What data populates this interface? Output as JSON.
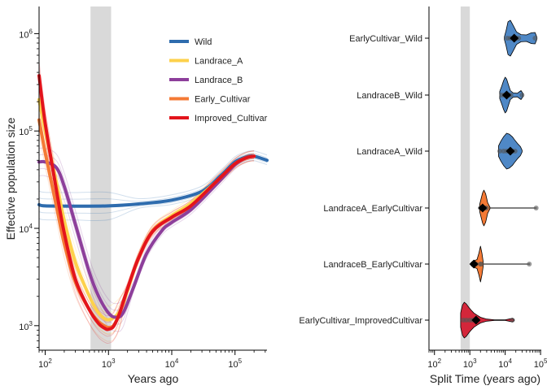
{
  "chart_data": [
    {
      "type": "line",
      "xlabel": "Years ago",
      "ylabel": "Effective population size",
      "x_scale": "log10",
      "y_scale": "log10",
      "xlim": [
        80,
        320000
      ],
      "ylim": [
        560,
        1900000
      ],
      "x_ticks": [
        100,
        1000,
        10000,
        100000
      ],
      "x_tick_labels": [
        [
          "10",
          "2"
        ],
        [
          "10",
          "3"
        ],
        [
          "10",
          "4"
        ],
        [
          "10",
          "5"
        ]
      ],
      "y_ticks": [
        1000,
        10000,
        100000,
        1000000
      ],
      "y_tick_labels": [
        [
          "10",
          "3"
        ],
        [
          "10",
          "4"
        ],
        [
          "10",
          "5"
        ],
        [
          "10",
          "6"
        ]
      ],
      "shaded_band_x": [
        520,
        1100
      ],
      "legend_position": "top-right",
      "series": [
        {
          "name": "Wild",
          "color": "#2e6cae",
          "x": [
            80,
            100,
            300,
            1000,
            3000,
            10000,
            30000,
            60000,
            100000,
            150000,
            200000,
            320000
          ],
          "y": [
            17500,
            17000,
            16900,
            17000,
            17800,
            19500,
            24000,
            35000,
            48000,
            54000,
            55000,
            50000
          ]
        },
        {
          "name": "Landrace_A",
          "color": "#fdd14b",
          "x": [
            80,
            100,
            150,
            200,
            300,
            500,
            700,
            1000,
            1500,
            2000,
            3000,
            5000,
            10000,
            20000,
            50000,
            100000,
            150000,
            200000
          ],
          "y": [
            210000,
            100000,
            30000,
            12000,
            4500,
            2000,
            1350,
            1150,
            1400,
            2300,
            5000,
            9500,
            13500,
            18000,
            30000,
            46000,
            53000,
            55000
          ]
        },
        {
          "name": "Landrace_B",
          "color": "#8d3f9b",
          "x": [
            80,
            100,
            150,
            200,
            300,
            500,
            700,
            1000,
            1300,
            1700,
            2500,
            4000,
            7000,
            10000,
            20000,
            50000,
            100000,
            150000,
            200000
          ],
          "y": [
            48000,
            48000,
            42000,
            27000,
            11000,
            3500,
            2000,
            1350,
            1220,
            1350,
            2500,
            5500,
            9500,
            11500,
            15500,
            28000,
            45000,
            53000,
            55000
          ]
        },
        {
          "name": "Early_Cultivar",
          "color": "#f47a35",
          "x": [
            80,
            100,
            150,
            200,
            300,
            500,
            700,
            900,
            1000,
            1200,
            1500,
            2000,
            3000,
            5000,
            10000,
            20000,
            50000,
            100000,
            150000,
            200000
          ],
          "y": [
            130000,
            60000,
            17000,
            7000,
            2800,
            1450,
            1100,
            980,
            960,
            1000,
            1350,
            2400,
            5000,
            9500,
            13000,
            17000,
            30000,
            46000,
            53000,
            55000
          ]
        },
        {
          "name": "Improved_Cultivar",
          "color": "#e3141c",
          "x": [
            80,
            100,
            150,
            200,
            300,
            500,
            700,
            900,
            1000,
            1200,
            1500,
            2000,
            3000,
            5000,
            10000,
            20000,
            50000,
            100000,
            150000,
            200000
          ],
          "y": [
            370000,
            120000,
            25000,
            9000,
            3000,
            1450,
            1050,
            930,
            920,
            980,
            1350,
            2400,
            5000,
            9300,
            13000,
            17000,
            30000,
            46000,
            53000,
            55000
          ]
        }
      ]
    },
    {
      "type": "violin",
      "xlabel": "Split Time (years ago)",
      "x_scale": "log10",
      "xlim": [
        70,
        105000
      ],
      "x_ticks": [
        100,
        1000,
        10000,
        100000
      ],
      "x_tick_labels": [
        [
          "10",
          "2"
        ],
        [
          "10",
          "3"
        ],
        [
          "10",
          "4"
        ],
        [
          "10",
          "5"
        ]
      ],
      "shaded_band_x": [
        550,
        1000
      ],
      "categories": [
        "EarlyCultivar_Wild",
        "LandraceB_Wild",
        "LandraceA_Wild",
        "LandraceA_EarlyCultivar",
        "LandraceB_EarlyCultivar",
        "EarlyCultivar_ImprovedCultivar"
      ],
      "groups": [
        {
          "category": "EarlyCultivar_Wild",
          "color": "#4f88c6",
          "mean": 18000,
          "points": [
            11500,
            14000,
            17000,
            20000,
            24000,
            70000
          ],
          "range": [
            9500,
            78000
          ],
          "profile_x": [
            9500,
            10500,
            12000,
            14000,
            17000,
            21000,
            28000,
            40000,
            55000,
            70000,
            78000
          ],
          "profile_w": [
            0.08,
            0.4,
            0.92,
            1.0,
            0.7,
            0.35,
            0.2,
            0.18,
            0.3,
            0.32,
            0.08
          ]
        },
        {
          "category": "LandraceB_Wild",
          "color": "#4f88c6",
          "mean": 11000,
          "points": [
            8000,
            9500,
            11000,
            12500,
            14500,
            30000
          ],
          "range": [
            7000,
            32000
          ],
          "profile_x": [
            7000,
            8000,
            9000,
            10000,
            11000,
            12500,
            14000,
            17000,
            22000,
            28000,
            32000
          ],
          "profile_w": [
            0.2,
            0.5,
            0.8,
            1.0,
            0.9,
            0.55,
            0.25,
            0.12,
            0.1,
            0.25,
            0.08
          ]
        },
        {
          "category": "LandraceA_Wild",
          "color": "#4f88c6",
          "mean": 14000,
          "points": [
            7000,
            9000,
            11000,
            13000,
            16000,
            19000
          ],
          "range": [
            6500,
            30000
          ],
          "profile_x": [
            6500,
            7500,
            9000,
            11000,
            13000,
            16000,
            19000,
            23000,
            27000,
            30000
          ],
          "profile_w": [
            0.3,
            0.55,
            0.8,
            1.0,
            0.95,
            0.8,
            0.6,
            0.4,
            0.25,
            0.05
          ]
        },
        {
          "category": "LandraceA_EarlyCultivar",
          "color": "#f47a35",
          "mean": 2300,
          "points": [
            2000,
            2300,
            2700,
            3000,
            75000
          ],
          "range": [
            1900,
            78000
          ],
          "profile_x": [
            1900,
            2100,
            2300,
            2500,
            2800,
            3200,
            3700
          ],
          "profile_w": [
            0.2,
            0.55,
            0.85,
            1.0,
            0.8,
            0.3,
            0.05
          ]
        },
        {
          "category": "LandraceB_EarlyCultivar",
          "color": "#f47a35",
          "mean": 1300,
          "points": [
            1200,
            1500,
            2000,
            2100,
            48000
          ],
          "range": [
            1100,
            50000
          ],
          "profile_x": [
            1100,
            1300,
            1600,
            1800,
            2000,
            2200,
            2400
          ],
          "profile_w": [
            0.1,
            0.18,
            0.25,
            0.6,
            1.0,
            0.6,
            0.1
          ]
        },
        {
          "category": "EarlyCultivar_ImprovedCultivar",
          "color": "#d3263a",
          "mean": 1500,
          "points": [
            650,
            800,
            1000,
            1200,
            1600,
            16000
          ],
          "range": [
            550,
            18000
          ],
          "profile_x": [
            550,
            620,
            700,
            800,
            950,
            1100,
            1300,
            1600,
            2000,
            3000,
            5000,
            10000,
            16000,
            18000
          ],
          "profile_w": [
            0.4,
            0.85,
            1.0,
            0.9,
            0.7,
            0.55,
            0.4,
            0.28,
            0.16,
            0.06,
            0.02,
            0.02,
            0.1,
            0.03
          ]
        }
      ]
    }
  ]
}
